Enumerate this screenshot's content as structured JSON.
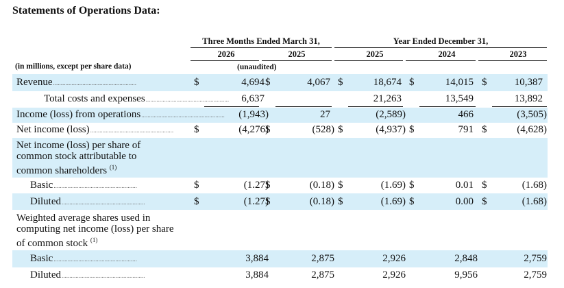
{
  "title": "Statements of Operations Data:",
  "header": {
    "group1": "Three Months Ended March 31,",
    "group2": "Year Ended December 31,",
    "years": [
      "2026",
      "2025",
      "2025",
      "2024",
      "2023"
    ],
    "units_note": "(in millions, except per share data)",
    "unaudited": "(unaudited)"
  },
  "rows": [
    {
      "label": "Revenue",
      "dollars": true,
      "values": [
        "4,694",
        "4,067",
        "18,674",
        "14,015",
        "10,387"
      ]
    },
    {
      "label": "Total costs and expenses",
      "dollars": false,
      "values": [
        "6,637",
        "",
        "21,263",
        "13,549",
        "13,892"
      ]
    },
    {
      "label": "Income (loss) from operations",
      "dollars": false,
      "values": [
        "(1,943)",
        "27",
        "(2,589)",
        "466",
        "(3,505)"
      ]
    },
    {
      "label": "Net income (loss)",
      "dollars": true,
      "values": [
        "(4,276)",
        "(528)",
        "(4,937)",
        "791",
        "(4,628)"
      ]
    },
    {
      "label": "Net income (loss) per share of common stock attributable to common shareholders",
      "footnote": "(1)"
    },
    {
      "label": "Basic",
      "dollars": true,
      "values": [
        "(1.27)",
        "(0.18)",
        "(1.69)",
        "0.01",
        "(1.68)"
      ]
    },
    {
      "label": "Diluted",
      "dollars": true,
      "values": [
        "(1.27)",
        "(0.18)",
        "(1.69)",
        "0.00",
        "(1.68)"
      ]
    },
    {
      "label": "Weighted average shares used in computing net income (loss) per share of common stock",
      "footnote": "(1)"
    },
    {
      "label": "Basic",
      "dollars": false,
      "values": [
        "3,884",
        "2,875",
        "2,926",
        "2,848",
        "2,759"
      ]
    },
    {
      "label": "Diluted",
      "dollars": false,
      "values": [
        "3,884",
        "2,875",
        "2,926",
        "9,956",
        "2,759"
      ]
    }
  ],
  "currency_symbol": "$",
  "colors": {
    "band": "#d6eef9",
    "text": "#111111"
  }
}
